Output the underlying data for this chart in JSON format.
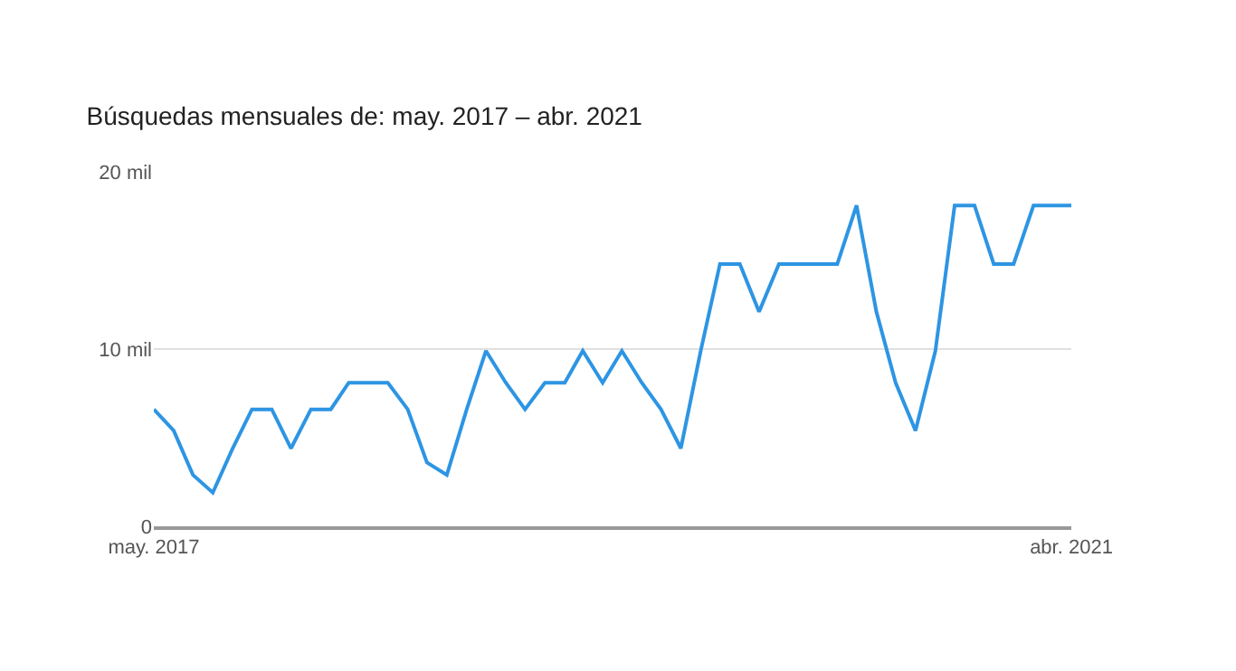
{
  "chart_data": {
    "type": "line",
    "title": "Búsquedas mensuales de: may. 2017 – abr. 2021",
    "x": [
      "2017-05",
      "2017-06",
      "2017-07",
      "2017-08",
      "2017-09",
      "2017-10",
      "2017-11",
      "2017-12",
      "2018-01",
      "2018-02",
      "2018-03",
      "2018-04",
      "2018-05",
      "2018-06",
      "2018-07",
      "2018-08",
      "2018-09",
      "2018-10",
      "2018-11",
      "2018-12",
      "2019-01",
      "2019-02",
      "2019-03",
      "2019-04",
      "2019-05",
      "2019-06",
      "2019-07",
      "2019-08",
      "2019-09",
      "2019-10",
      "2019-11",
      "2019-12",
      "2020-01",
      "2020-02",
      "2020-03",
      "2020-04",
      "2020-05",
      "2020-06",
      "2020-07",
      "2020-08",
      "2020-09",
      "2020-10",
      "2020-11",
      "2020-12",
      "2021-01",
      "2021-02",
      "2021-03",
      "2021-04"
    ],
    "series": [
      {
        "color": "#2d95e3",
        "values": [
          6.6,
          5.4,
          2.9,
          1.9,
          4.4,
          6.6,
          6.6,
          4.4,
          6.6,
          6.6,
          8.1,
          8.1,
          8.1,
          6.6,
          3.6,
          2.9,
          6.6,
          9.9,
          8.1,
          6.6,
          8.1,
          8.1,
          9.9,
          8.1,
          9.9,
          8.1,
          6.6,
          4.4,
          9.9,
          14.8,
          14.8,
          12.1,
          14.8,
          14.8,
          14.8,
          14.8,
          18.1,
          12.1,
          8.1,
          5.4,
          9.9,
          18.1,
          18.1,
          14.8,
          14.8,
          18.1,
          18.1,
          18.1
        ]
      }
    ],
    "xlim": [
      "2017-05",
      "2021-04"
    ],
    "xticks": [
      {
        "value": "2017-05",
        "label": "may. 2017"
      },
      {
        "value": "2021-04",
        "label": "abr. 2021"
      }
    ],
    "ylim": [
      0,
      20
    ],
    "yticks": [
      0,
      {
        "value": 10,
        "label": "10 mil"
      },
      {
        "value": 20,
        "label": "20 mil"
      }
    ],
    "grid": "y",
    "marker": "none",
    "line_style": "solid"
  }
}
